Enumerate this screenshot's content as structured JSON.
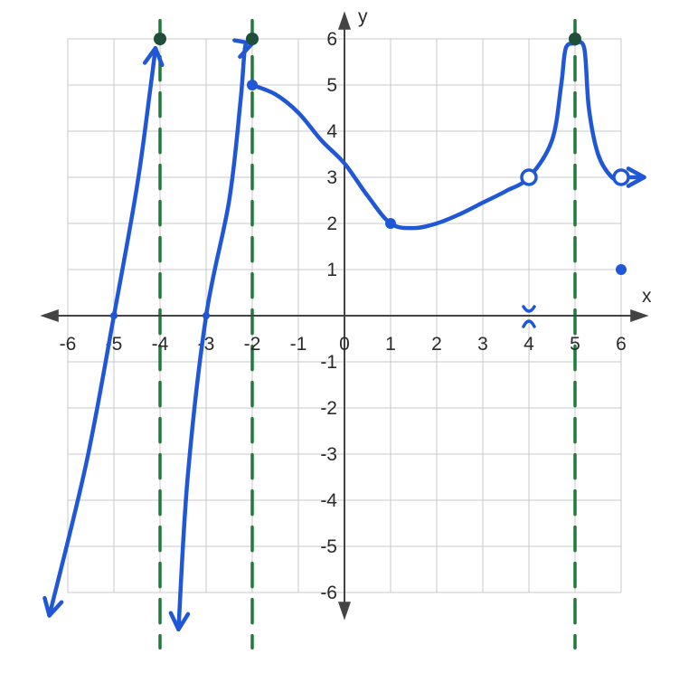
{
  "chart_data": {
    "type": "line",
    "xlabel": "x",
    "ylabel": "y",
    "xlim": [
      -6,
      6
    ],
    "ylim": [
      -6,
      6
    ],
    "grid": true,
    "x_ticks": [
      "-6",
      "-5",
      "-4",
      "-3",
      "-2",
      "-1",
      "0",
      "1",
      "2",
      "3",
      "4",
      "5",
      "6"
    ],
    "y_ticks": [
      "-6",
      "-5",
      "-4",
      "-3",
      "-2",
      "-1",
      "1",
      "2",
      "3",
      "4",
      "5",
      "6"
    ],
    "colors": {
      "curve": "#1f57d6",
      "asymptote": "#1f7a3c",
      "axis": "#444444",
      "grid": "#c8c8c8"
    },
    "vertical_asymptotes": [
      -4,
      -2,
      5
    ],
    "branches": [
      {
        "points": [
          [
            -6.4,
            -6.5
          ],
          [
            -5.6,
            -3.2
          ],
          [
            -5,
            0
          ],
          [
            -4.5,
            2.8
          ],
          [
            -4.2,
            5.0
          ],
          [
            -4.1,
            5.8
          ]
        ],
        "end_arrow": true,
        "start_arrow": true
      },
      {
        "points": [
          [
            -3.6,
            -6.8
          ],
          [
            -3.4,
            -3.5
          ],
          [
            -3,
            0
          ],
          [
            -2.5,
            2.5
          ],
          [
            -2.25,
            4.7
          ],
          [
            -2.15,
            5.85
          ],
          [
            -2.0,
            5.9
          ]
        ],
        "end_arrow": true,
        "start_arrow": true
      },
      {
        "points": [
          [
            -2.0,
            5.0
          ],
          [
            -1.5,
            4.8
          ],
          [
            -1,
            4.4
          ],
          [
            -0.5,
            3.8
          ],
          [
            0,
            3.3
          ],
          [
            0.5,
            2.6
          ],
          [
            1,
            2.0
          ],
          [
            1.5,
            1.9
          ],
          [
            2,
            2.0
          ],
          [
            2.5,
            2.2
          ],
          [
            3,
            2.45
          ],
          [
            3.5,
            2.7
          ],
          [
            4,
            3.0
          ],
          [
            4.5,
            3.8
          ],
          [
            4.7,
            5.0
          ],
          [
            4.8,
            5.8
          ],
          [
            5.0,
            5.9
          ]
        ],
        "end_arrow": false,
        "start_arrow": false
      },
      {
        "points": [
          [
            5.0,
            5.9
          ],
          [
            5.2,
            5.8
          ],
          [
            5.3,
            4.5
          ],
          [
            5.5,
            3.5
          ],
          [
            5.8,
            3.0
          ],
          [
            6.0,
            3.0
          ],
          [
            6.5,
            3.0
          ]
        ],
        "end_arrow": true,
        "start_arrow": false
      }
    ],
    "closed_points": [
      [
        -2,
        5
      ],
      [
        1,
        2
      ],
      [
        6,
        1
      ]
    ],
    "open_points": [
      [
        4,
        3
      ],
      [
        6,
        3
      ]
    ],
    "top_markers": [
      [
        -4,
        6
      ],
      [
        -2,
        6
      ],
      [
        5,
        6
      ]
    ],
    "intercepts": [
      [
        -5,
        0
      ],
      [
        -3,
        0
      ]
    ],
    "x_marks": [
      [
        4,
        0
      ]
    ]
  }
}
